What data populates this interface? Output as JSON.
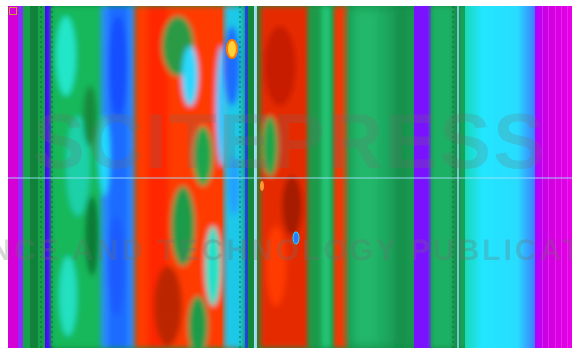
{
  "viewer": {
    "scan_palette": [
      "#d000d0",
      "#6a00ff",
      "#3a8cff",
      "#20d8ff",
      "#18e6c8",
      "#1aa84c",
      "#138a3a",
      "#7a7a00",
      "#ff3300",
      "#c81e00",
      "#ffd23a"
    ],
    "crosshair_color": "#9fe3ff"
  },
  "watermark": {
    "brand": "SCITEPRESS",
    "tagline": "SCIENCE AND TECHNOLOGY PUBLICATIONS",
    "color": "#7a7a7a"
  }
}
